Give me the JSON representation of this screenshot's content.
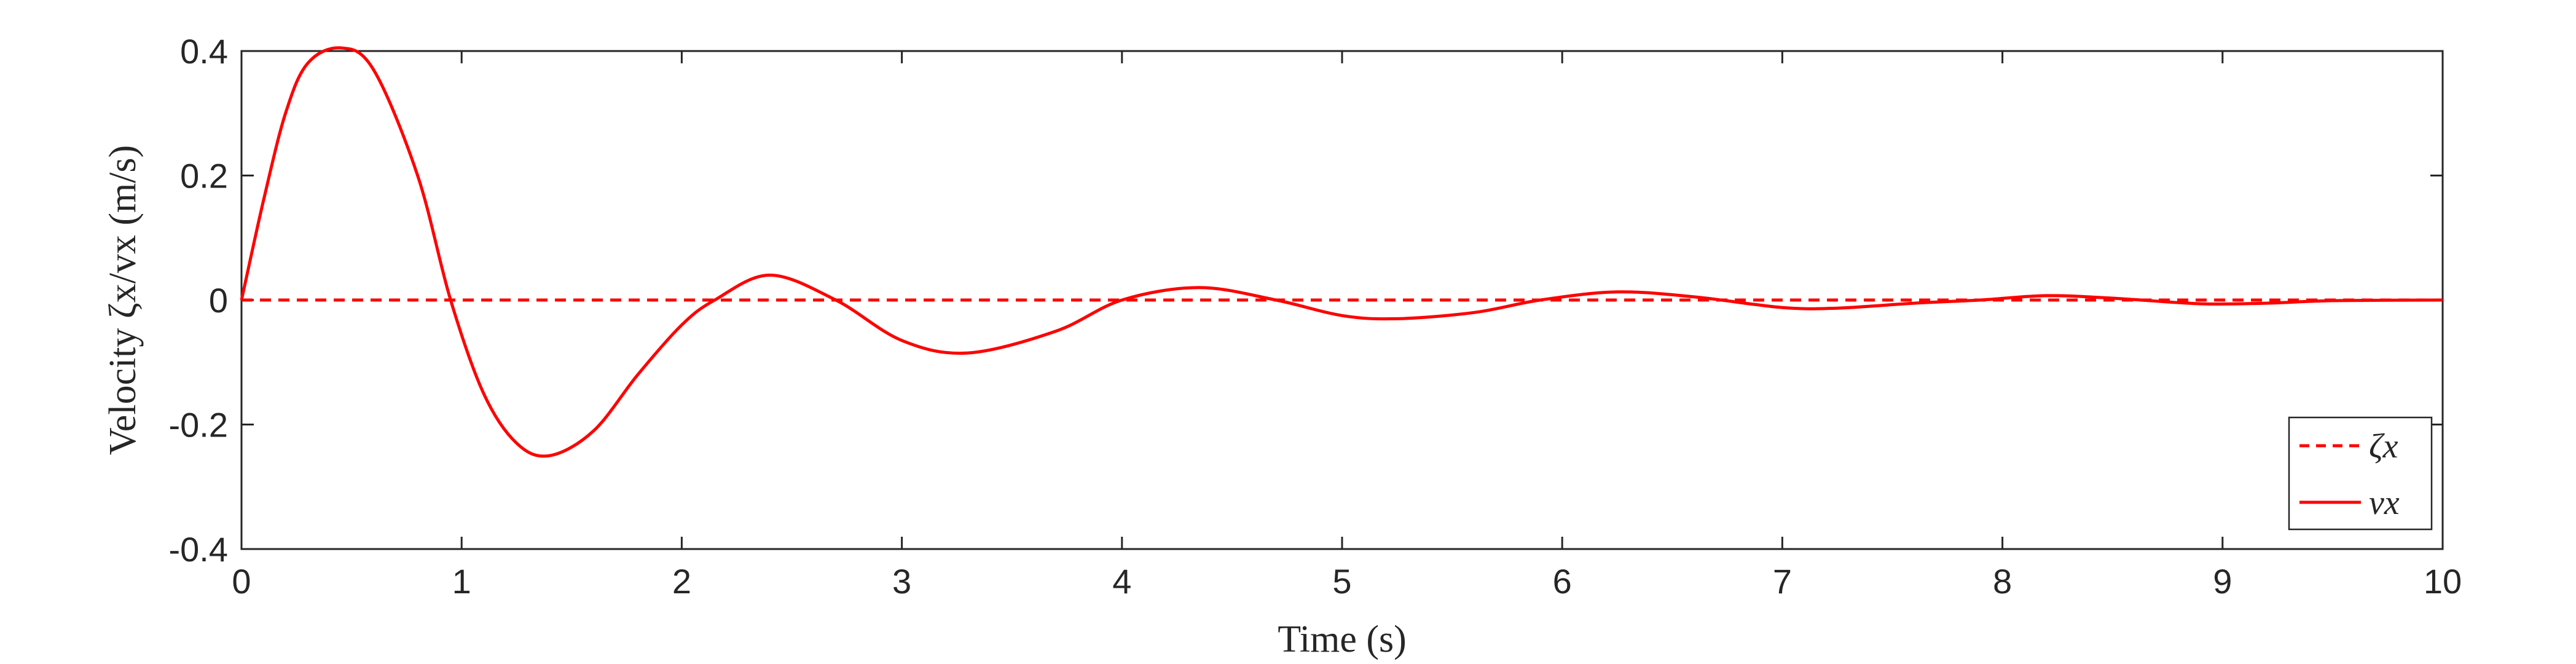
{
  "chart_data": {
    "type": "line",
    "xlabel": "Time (s)",
    "ylabel": "Velocity ζx/vx (m/s)",
    "xlim": [
      0,
      10
    ],
    "ylim": [
      -0.4,
      0.4
    ],
    "xticks": [
      "0",
      "1",
      "2",
      "3",
      "4",
      "5",
      "6",
      "7",
      "8",
      "9",
      "10"
    ],
    "yticks": [
      "0.4",
      "0.2",
      "0",
      "-0.2",
      "-0.4"
    ],
    "grid": false,
    "legend_position": "bottom-right",
    "series": [
      {
        "name": "ζx",
        "style": "dashed",
        "color": "#ff0000",
        "x": [
          0,
          10
        ],
        "y": [
          0,
          0
        ]
      },
      {
        "name": "vx",
        "style": "solid",
        "color": "#ff0000",
        "x": [
          0,
          0.1,
          0.2,
          0.3,
          0.45,
          0.6,
          0.8,
          0.95,
          1.1,
          1.25,
          1.4,
          1.6,
          1.8,
          2.0,
          2.15,
          2.4,
          2.7,
          3.0,
          3.3,
          3.7,
          4.0,
          4.35,
          4.7,
          5.0,
          5.25,
          5.6,
          5.9,
          6.25,
          6.6,
          7.0,
          7.25,
          7.6,
          7.9,
          8.2,
          8.5,
          8.9,
          9.2,
          9.5,
          10.0
        ],
        "y": [
          0,
          0.16,
          0.3,
          0.38,
          0.405,
          0.37,
          0.2,
          0.0,
          -0.15,
          -0.23,
          -0.25,
          -0.21,
          -0.12,
          -0.04,
          0.0,
          0.04,
          0.0,
          -0.065,
          -0.085,
          -0.05,
          0.0,
          0.02,
          0.0,
          -0.025,
          -0.03,
          -0.02,
          0.0,
          0.013,
          0.005,
          -0.012,
          -0.013,
          -0.005,
          0.0,
          0.007,
          0.003,
          -0.006,
          -0.005,
          -0.001,
          0.0
        ]
      }
    ]
  }
}
